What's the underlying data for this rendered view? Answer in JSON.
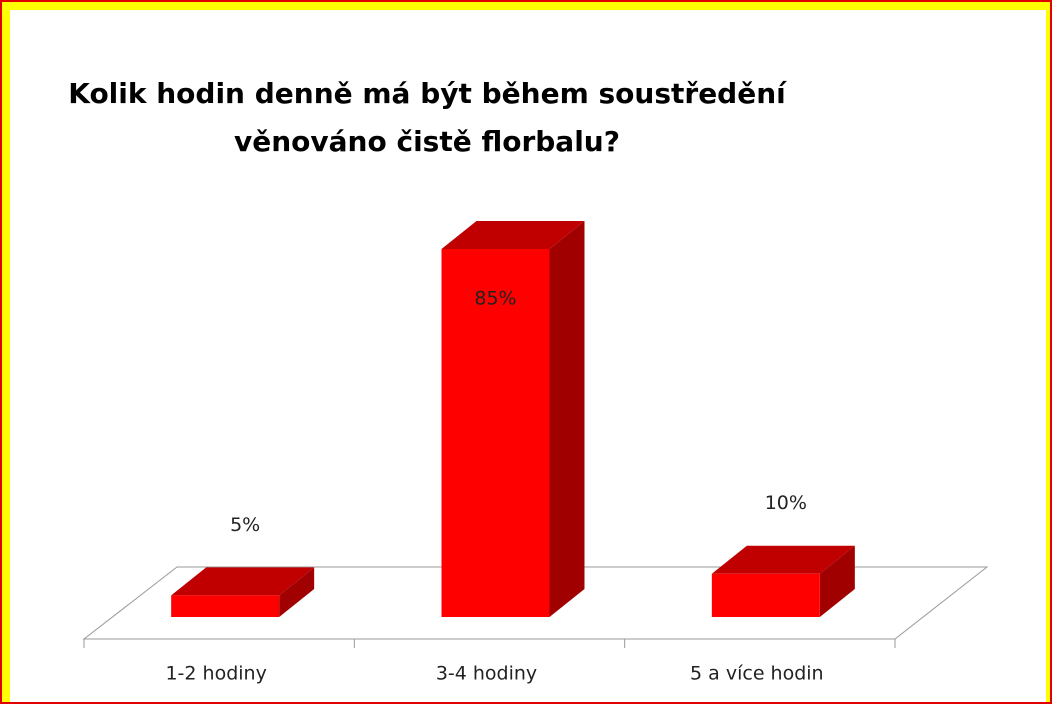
{
  "chart_data": {
    "type": "bar3d",
    "title": "Kolik hodin denně má být během soustředění věnováno čistě florbalu?",
    "categories": [
      "1-2 hodiny",
      "3-4 hodiny",
      "5 a více hodin"
    ],
    "values": [
      5,
      85,
      10
    ],
    "value_labels": [
      "5%",
      "85%",
      "10%"
    ],
    "color": "#ff0000"
  }
}
